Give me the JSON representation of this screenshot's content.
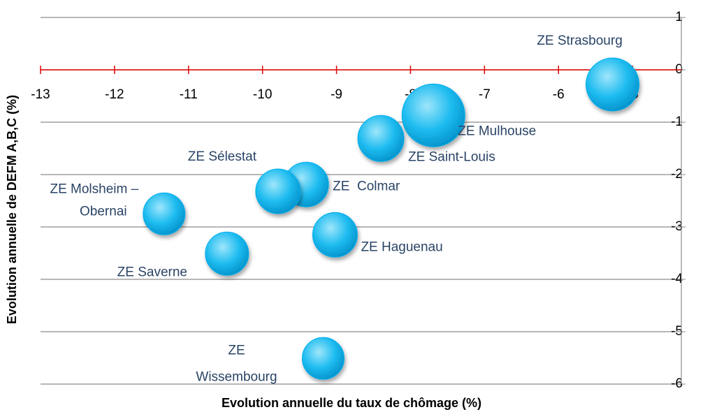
{
  "chart_data": {
    "type": "bubble",
    "x_label": "Evolution annuelle du taux de chômage (%)",
    "y_label": "Evolution annuelle de DEFM A,B,C (%)",
    "x": [
      -5.27,
      -7.69,
      -8.4,
      -9.41,
      -9.79,
      -9.02,
      -11.33,
      -10.48,
      -9.18
    ],
    "values": [
      -0.28,
      -0.87,
      -1.31,
      -2.19,
      -2.32,
      -3.15,
      -2.75,
      -3.51,
      -5.51
    ],
    "sizes": [
      38,
      45,
      33,
      32,
      32,
      32,
      30,
      31,
      30
    ],
    "labels": [
      [
        "ZE Strasbourg"
      ],
      [
        "ZE Mulhouse"
      ],
      [
        "ZE Saint-Louis"
      ],
      [
        "ZE  Colmar"
      ],
      [
        "ZE Sélestat"
      ],
      [
        "ZE Haguenau"
      ],
      [
        "ZE Molsheim –",
        "Obernai"
      ],
      [
        "ZE Saverne"
      ],
      [
        "ZE",
        "Wissembourg"
      ]
    ],
    "color": "#00aeef",
    "xlim": [
      -13,
      -4.34
    ],
    "xticks": [
      -13,
      -12,
      -11,
      -10,
      -9,
      -8,
      -7,
      -6,
      -5
    ],
    "ylim": [
      -6,
      1
    ],
    "yticks": [
      -6,
      -5,
      -4,
      -3,
      -2,
      -1,
      0,
      1
    ],
    "grid": true
  }
}
